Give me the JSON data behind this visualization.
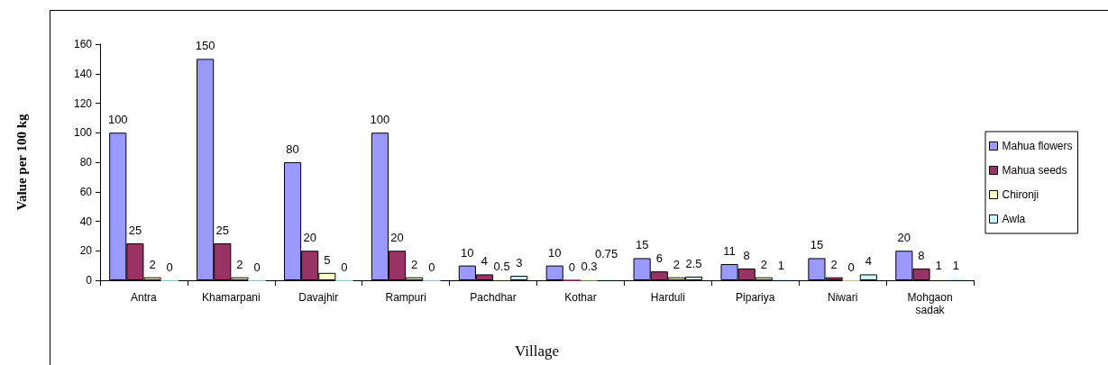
{
  "chart_data": {
    "type": "bar",
    "xlabel": "Village",
    "ylabel": "Value per 100 kg",
    "categories": [
      "Antra",
      "Khamarpani",
      "Davajhir",
      "Rampuri",
      "Pachdhar",
      "Kothar",
      "Harduli",
      "Pipariya",
      "Niwari",
      "Mohgaon sadak"
    ],
    "series": [
      {
        "name": "Mahua flowers",
        "color": "#9999ff",
        "values": [
          100,
          150,
          80,
          100,
          10,
          10,
          15,
          11,
          15,
          20
        ]
      },
      {
        "name": "Mahua seeds",
        "color": "#993366",
        "values": [
          25,
          25,
          20,
          20,
          4,
          0,
          6,
          8,
          2,
          8
        ]
      },
      {
        "name": "Chironji",
        "color": "#ffffcc",
        "values": [
          2,
          2,
          5,
          2,
          0.5,
          0.3,
          2,
          2,
          0,
          1
        ]
      },
      {
        "name": "Awla",
        "color": "#ccffff",
        "values": [
          0,
          0,
          0,
          0,
          3,
          0.75,
          2.5,
          1,
          4,
          1
        ]
      }
    ],
    "ylim": [
      0,
      160
    ],
    "yticks": [
      0,
      20,
      40,
      60,
      80,
      100,
      120,
      140,
      160
    ],
    "data_labels": true,
    "legend": "right"
  }
}
